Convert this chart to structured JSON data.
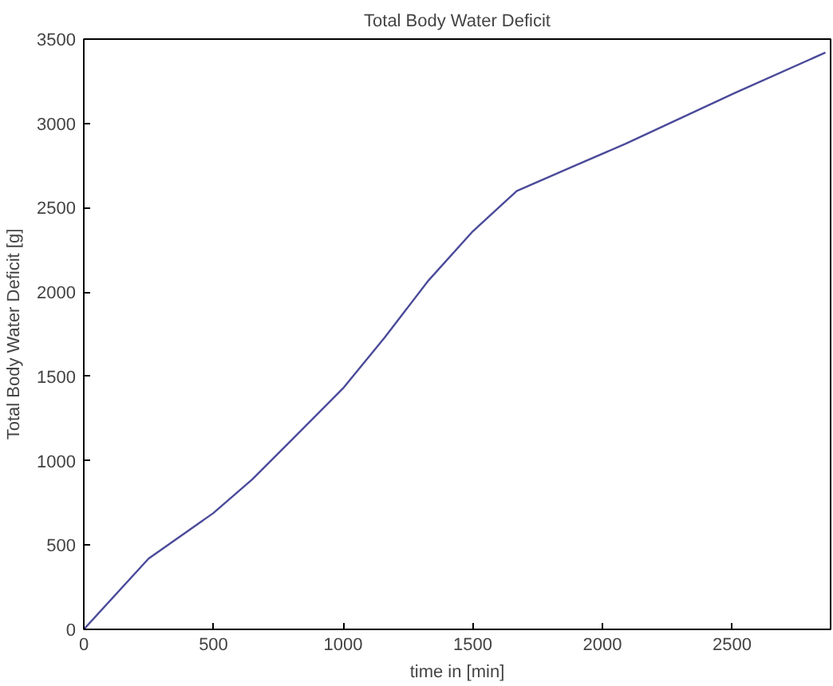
{
  "chart_data": {
    "type": "line",
    "title": "Total Body Water Deficit",
    "xlabel": "time in [min]",
    "ylabel": "Total Body Water Deficit [g]",
    "x": [
      0,
      250,
      500,
      650,
      800,
      1000,
      1160,
      1330,
      1500,
      1670,
      1880,
      2090,
      2300,
      2510,
      2860
    ],
    "series": [
      {
        "color": "#4a4a9a",
        "values": [
          0,
          420,
          690,
          890,
          1120,
          1430,
          1730,
          2070,
          2360,
          2600,
          2740,
          2880,
          3030,
          3180,
          3420
        ]
      }
    ],
    "xlim": [
      0,
      2880
    ],
    "ylim": [
      0,
      3500
    ],
    "xticks": [
      0,
      500,
      1000,
      1500,
      2000,
      2500
    ],
    "yticks": [
      0,
      500,
      1000,
      1500,
      2000,
      2500,
      3000,
      3500
    ]
  }
}
